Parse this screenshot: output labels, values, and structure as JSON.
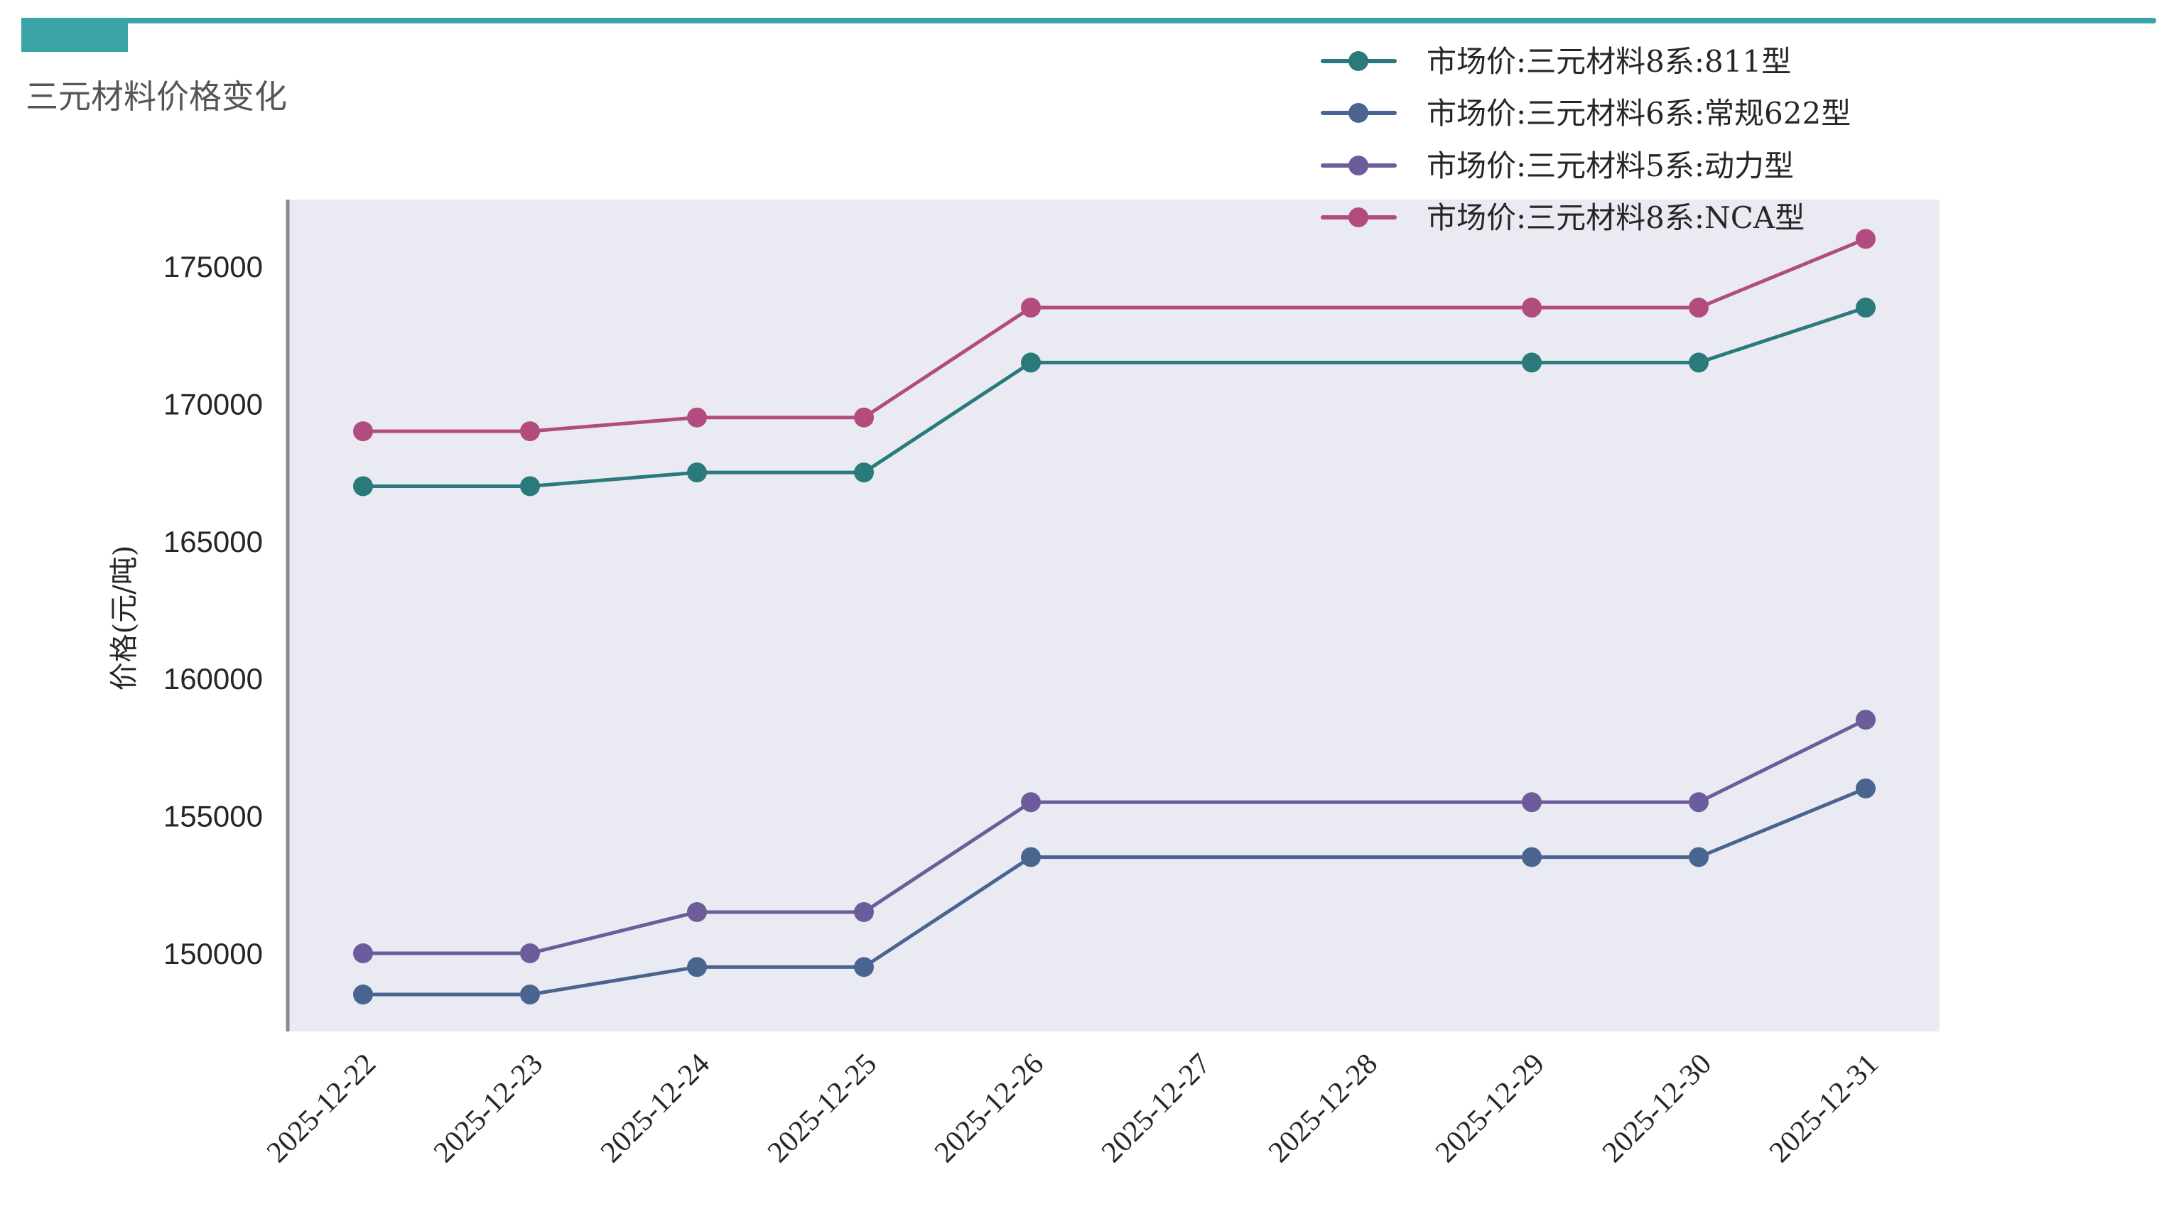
{
  "header": {
    "accent_color": "#3aa3a6",
    "title": "三元材料价格变化"
  },
  "chart_data": {
    "type": "line",
    "title": "三元材料价格变化",
    "xlabel": "",
    "ylabel": "价格(元/吨)",
    "x": [
      "2025-12-22",
      "2025-12-23",
      "2025-12-24",
      "2025-12-25",
      "2025-12-26",
      "2025-12-27",
      "2025-12-28",
      "2025-12-29",
      "2025-12-30",
      "2025-12-31"
    ],
    "yticks": [
      150000,
      155000,
      160000,
      165000,
      170000,
      175000
    ],
    "ylim": [
      147000,
      179400
    ],
    "grid": false,
    "legend_position": "upper right",
    "background": "#eaeaf2",
    "series": [
      {
        "name": "市场价:三元材料8系:811型",
        "color": "#2a7a7b",
        "values": [
          167000,
          167000,
          167500,
          167500,
          171500,
          null,
          null,
          171500,
          171500,
          173500
        ]
      },
      {
        "name": "市场价:三元材料6系:常规622型",
        "color": "#49658f",
        "values": [
          148500,
          148500,
          149500,
          149500,
          153500,
          null,
          null,
          153500,
          153500,
          156000
        ]
      },
      {
        "name": "市场价:三元材料5系:动力型",
        "color": "#6c5c9c",
        "values": [
          150000,
          150000,
          151500,
          151500,
          155500,
          null,
          null,
          155500,
          155500,
          158500
        ]
      },
      {
        "name": "市场价:三元材料8系:NCA型",
        "color": "#b34c7e",
        "values": [
          169000,
          169000,
          169500,
          169500,
          173500,
          null,
          null,
          173500,
          173500,
          176000
        ]
      }
    ]
  }
}
